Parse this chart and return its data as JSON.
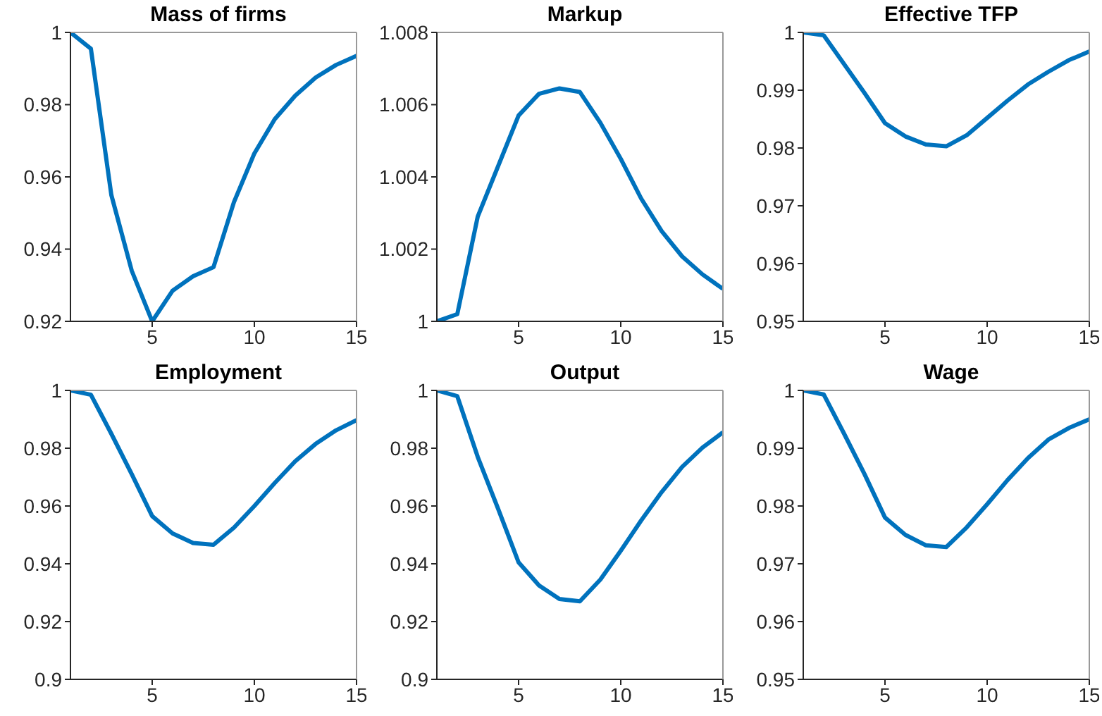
{
  "chart_data": [
    {
      "type": "line",
      "title": "Mass of firms",
      "x": [
        1,
        2,
        3,
        4,
        5,
        6,
        7,
        8,
        9,
        10,
        11,
        12,
        13,
        14,
        15
      ],
      "color": "#0072bd",
      "values": [
        1,
        0.9955,
        0.955,
        0.934,
        0.92,
        0.9285,
        0.9325,
        0.935,
        0.953,
        0.9665,
        0.976,
        0.9825,
        0.9875,
        0.991,
        0.9935
      ],
      "xlim": [
        1,
        15
      ],
      "xticks": [
        5,
        10,
        15
      ],
      "ylim": [
        0.92,
        1
      ],
      "yticks": [
        0.92,
        0.94,
        0.96,
        0.98,
        1
      ]
    },
    {
      "type": "line",
      "title": "Markup",
      "x": [
        1,
        2,
        3,
        4,
        5,
        6,
        7,
        8,
        9,
        10,
        11,
        12,
        13,
        14,
        15
      ],
      "color": "#0072bd",
      "values": [
        1,
        1.0002,
        1.0029,
        1.0043,
        1.0057,
        1.0063,
        1.00645,
        1.00635,
        1.0055,
        1.0045,
        1.0034,
        1.0025,
        1.0018,
        1.0013,
        1.0009
      ],
      "xlim": [
        1,
        15
      ],
      "xticks": [
        5,
        10,
        15
      ],
      "ylim": [
        1,
        1.008
      ],
      "yticks": [
        1,
        1.002,
        1.004,
        1.006,
        1.008
      ]
    },
    {
      "type": "line",
      "title": "Effective TFP",
      "x": [
        1,
        2,
        3,
        4,
        5,
        6,
        7,
        8,
        9,
        10,
        11,
        12,
        13,
        14,
        15
      ],
      "color": "#0072bd",
      "values": [
        1,
        0.9995,
        0.9945,
        0.9895,
        0.9843,
        0.982,
        0.9806,
        0.9803,
        0.9822,
        0.9852,
        0.9882,
        0.991,
        0.9932,
        0.9952,
        0.9967
      ],
      "xlim": [
        1,
        15
      ],
      "xticks": [
        5,
        10,
        15
      ],
      "ylim": [
        0.95,
        1
      ],
      "yticks": [
        0.95,
        0.96,
        0.97,
        0.98,
        0.99,
        1
      ]
    },
    {
      "type": "line",
      "title": "Employment",
      "x": [
        1,
        2,
        3,
        4,
        5,
        6,
        7,
        8,
        9,
        10,
        11,
        12,
        13,
        14,
        15
      ],
      "color": "#0072bd",
      "values": [
        1,
        0.9985,
        0.985,
        0.971,
        0.9565,
        0.9505,
        0.9472,
        0.9466,
        0.9525,
        0.96,
        0.968,
        0.9755,
        0.9815,
        0.9862,
        0.9897
      ],
      "xlim": [
        1,
        15
      ],
      "xticks": [
        5,
        10,
        15
      ],
      "ylim": [
        0.9,
        1
      ],
      "yticks": [
        0.9,
        0.92,
        0.94,
        0.96,
        0.98,
        1
      ]
    },
    {
      "type": "line",
      "title": "Output",
      "x": [
        1,
        2,
        3,
        4,
        5,
        6,
        7,
        8,
        9,
        10,
        11,
        12,
        13,
        14,
        15
      ],
      "color": "#0072bd",
      "values": [
        1,
        0.998,
        0.977,
        0.959,
        0.9405,
        0.9325,
        0.9278,
        0.927,
        0.9345,
        0.9445,
        0.955,
        0.9648,
        0.9735,
        0.9802,
        0.9855
      ],
      "xlim": [
        1,
        15
      ],
      "xticks": [
        5,
        10,
        15
      ],
      "ylim": [
        0.9,
        1
      ],
      "yticks": [
        0.9,
        0.92,
        0.94,
        0.96,
        0.98,
        1
      ]
    },
    {
      "type": "line",
      "title": "Wage",
      "x": [
        1,
        2,
        3,
        4,
        5,
        6,
        7,
        8,
        9,
        10,
        11,
        12,
        13,
        14,
        15
      ],
      "color": "#0072bd",
      "values": [
        1,
        0.9993,
        0.9925,
        0.9855,
        0.978,
        0.975,
        0.9732,
        0.9729,
        0.9763,
        0.9803,
        0.9845,
        0.9883,
        0.9915,
        0.9935,
        0.995
      ],
      "xlim": [
        1,
        15
      ],
      "xticks": [
        5,
        10,
        15
      ],
      "ylim": [
        0.95,
        1
      ],
      "yticks": [
        0.95,
        0.96,
        0.97,
        0.98,
        0.99,
        1
      ]
    }
  ]
}
